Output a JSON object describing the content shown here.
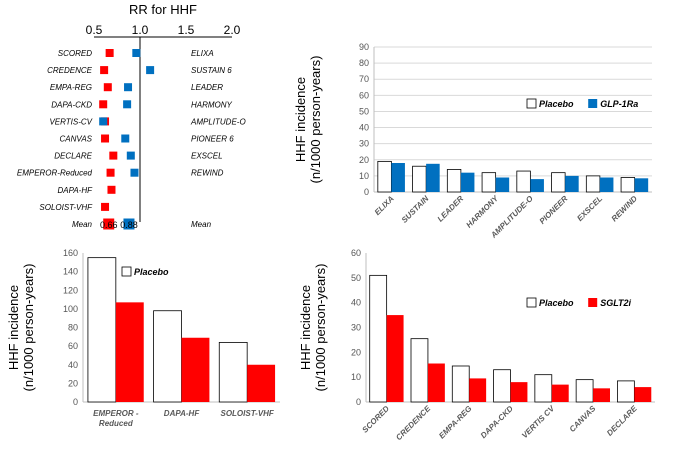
{
  "chart_data": [
    {
      "type": "scatter",
      "title": "RR for HHF",
      "x_ticks": [
        "0.5",
        "1.0",
        "1.5",
        "2.0"
      ],
      "xlim": [
        0.5,
        2.0
      ],
      "rows": [
        {
          "sglt2i_trial": "SCORED",
          "sglt2i_rr": 0.67,
          "glp1ra_trial": "ELIXA",
          "glp1ra_rr": 0.96
        },
        {
          "sglt2i_trial": "CREDENCE",
          "sglt2i_rr": 0.61,
          "glp1ra_trial": "SUSTAIN 6",
          "glp1ra_rr": 1.11
        },
        {
          "sglt2i_trial": "EMPA-REG",
          "sglt2i_rr": 0.65,
          "glp1ra_trial": "LEADER",
          "glp1ra_rr": 0.87
        },
        {
          "sglt2i_trial": "DAPA-CKD",
          "sglt2i_rr": 0.6,
          "glp1ra_trial": "HARMONY",
          "glp1ra_rr": 0.86
        },
        {
          "sglt2i_trial": "VERTIS-CV",
          "sglt2i_rr": 0.62,
          "glp1ra_trial": "AMPLITUDE-O",
          "glp1ra_rr": 0.6
        },
        {
          "sglt2i_trial": "CANVAS",
          "sglt2i_rr": 0.62,
          "glp1ra_trial": "PIONEER 6",
          "glp1ra_rr": 0.84
        },
        {
          "sglt2i_trial": "DECLARE",
          "sglt2i_rr": 0.71,
          "glp1ra_trial": "EXSCEL",
          "glp1ra_rr": 0.9
        },
        {
          "sglt2i_trial": "EMPEROR-Reduced",
          "sglt2i_rr": 0.68,
          "glp1ra_trial": "REWIND",
          "glp1ra_rr": 0.94
        },
        {
          "sglt2i_trial": "DAPA-HF",
          "sglt2i_rr": 0.69,
          "glp1ra_trial": "",
          "glp1ra_rr": null
        },
        {
          "sglt2i_trial": "SOLOIST-VHF",
          "sglt2i_rr": 0.62,
          "glp1ra_trial": "",
          "glp1ra_rr": null
        },
        {
          "sglt2i_trial": "Mean",
          "sglt2i_rr": 0.66,
          "glp1ra_trial": "Mean",
          "glp1ra_rr": 0.88
        }
      ],
      "mean_labels": [
        "0.66",
        "0.88"
      ],
      "reference_line": 1.0,
      "colors": {
        "sglt2i": "#ff0000",
        "glp1ra": "#0070c0"
      }
    },
    {
      "type": "bar",
      "ylabel": "HHF incidence\n(n/1000 person-years)",
      "ylim": [
        0,
        90
      ],
      "y_ticks": [
        0,
        10,
        20,
        30,
        40,
        50,
        60,
        70,
        80,
        90
      ],
      "grid": true,
      "legend": "top-right",
      "categories": [
        "ELIXA",
        "SUSTAIN",
        "LEADER",
        "HARMONY",
        "AMPLITUDE-O",
        "PIONEER",
        "EXSCEL",
        "REWIND"
      ],
      "series": [
        {
          "name": "Placebo",
          "color": "#ffffff",
          "values": [
            19,
            16,
            14,
            12,
            13,
            12,
            10,
            9
          ]
        },
        {
          "name": "GLP-1Ra",
          "color": "#0070c0",
          "values": [
            18,
            17.5,
            12,
            9,
            8,
            10,
            9,
            8.5
          ]
        }
      ]
    },
    {
      "type": "bar",
      "ylabel": "HHF incidence\n(n/1000 person-years)",
      "ylim": [
        0,
        160
      ],
      "y_ticks": [
        0,
        20,
        40,
        60,
        80,
        100,
        120,
        140,
        160
      ],
      "grid": false,
      "legend": "top-right",
      "categories": [
        "EMPEROR -\nReduced",
        "DAPA-HF",
        "SOLOIST-VHF"
      ],
      "series": [
        {
          "name": "Placebo",
          "color": "#ffffff",
          "values": [
            155,
            98,
            64
          ]
        },
        {
          "name": "",
          "color": "#ff0000",
          "values": [
            107,
            69,
            40
          ]
        }
      ]
    },
    {
      "type": "bar",
      "ylabel": "HHF incidence\n(n/1000 person-years)",
      "ylim": [
        0,
        60
      ],
      "y_ticks": [
        0,
        10,
        20,
        30,
        40,
        50,
        60
      ],
      "grid": false,
      "legend": "top-right",
      "categories": [
        "SCORED",
        "CREDENCE",
        "EMPA-REG",
        "DAPA-CKD",
        "VERTIS CV",
        "CANVAS",
        "DECLARE"
      ],
      "series": [
        {
          "name": "Placebo",
          "color": "#ffffff",
          "values": [
            51,
            25.5,
            14.5,
            13,
            11,
            9,
            8.5
          ]
        },
        {
          "name": "SGLT2i",
          "color": "#ff0000",
          "values": [
            35,
            15.5,
            9.5,
            8,
            7,
            5.5,
            6
          ]
        }
      ]
    }
  ]
}
